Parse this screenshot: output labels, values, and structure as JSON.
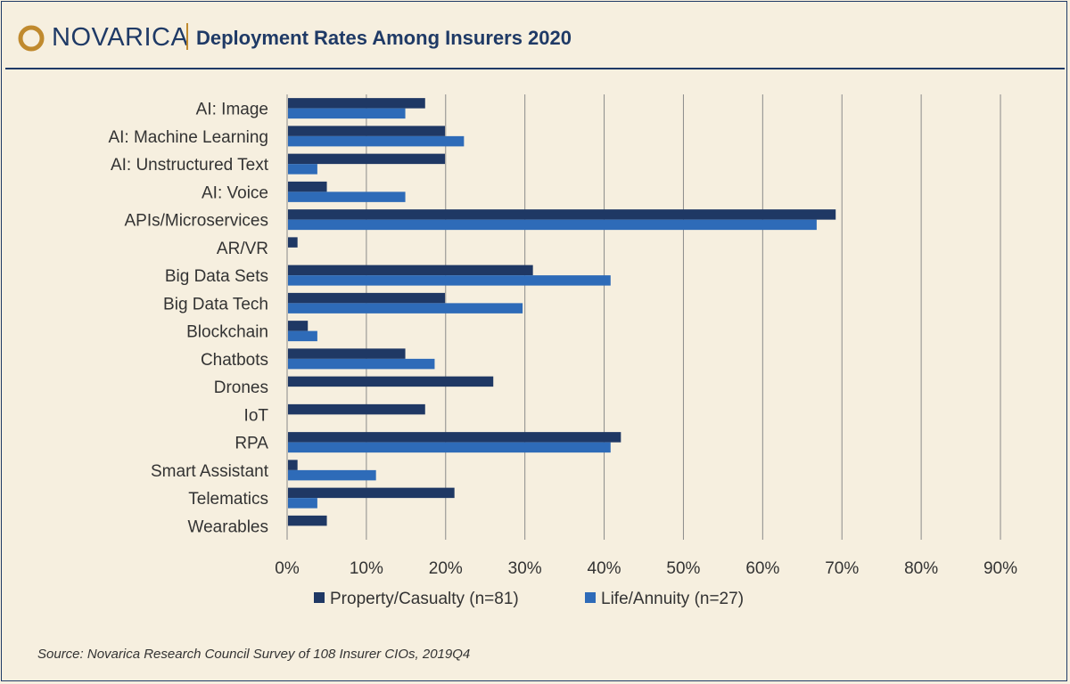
{
  "header": {
    "brand": "NOVARICA",
    "title": "Deployment Rates Among Insurers 2020"
  },
  "source": "Source: Novarica Research Council Survey of 108 Insurer CIOs, 2019Q4",
  "colors": {
    "property_casualty": "#1f3864",
    "life_annuity": "#2e6bb8",
    "brand": "#1f3a66",
    "accent": "#c08a2e",
    "background": "#f6efdf"
  },
  "chart_data": {
    "type": "bar",
    "orientation": "horizontal",
    "categories": [
      "AI: Image",
      "AI: Machine Learning",
      "AI: Unstructured Text",
      "AI: Voice",
      "APIs/Microservices",
      "AR/VR",
      "Big Data Sets",
      "Big Data Tech",
      "Blockchain",
      "Chatbots",
      "Drones",
      "IoT",
      "RPA",
      "Smart Assistant",
      "Telematics",
      "Wearables"
    ],
    "series": [
      {
        "name": "Property/Casualty (n=81)",
        "values": [
          17.3,
          19.8,
          19.8,
          4.9,
          69.1,
          1.2,
          30.9,
          19.8,
          2.5,
          14.8,
          25.9,
          17.3,
          42.0,
          1.2,
          21.0,
          4.9
        ]
      },
      {
        "name": "Life/Annuity (n=27)",
        "values": [
          14.8,
          22.2,
          3.7,
          14.8,
          66.7,
          0,
          40.7,
          29.6,
          3.7,
          18.5,
          0,
          0,
          40.7,
          11.1,
          3.7,
          0
        ]
      }
    ],
    "x_ticks": [
      "0%",
      "10%",
      "20%",
      "30%",
      "40%",
      "50%",
      "60%",
      "70%",
      "80%",
      "90%"
    ],
    "xlim": [
      0,
      90
    ],
    "grid": true,
    "legend_position": "bottom"
  }
}
